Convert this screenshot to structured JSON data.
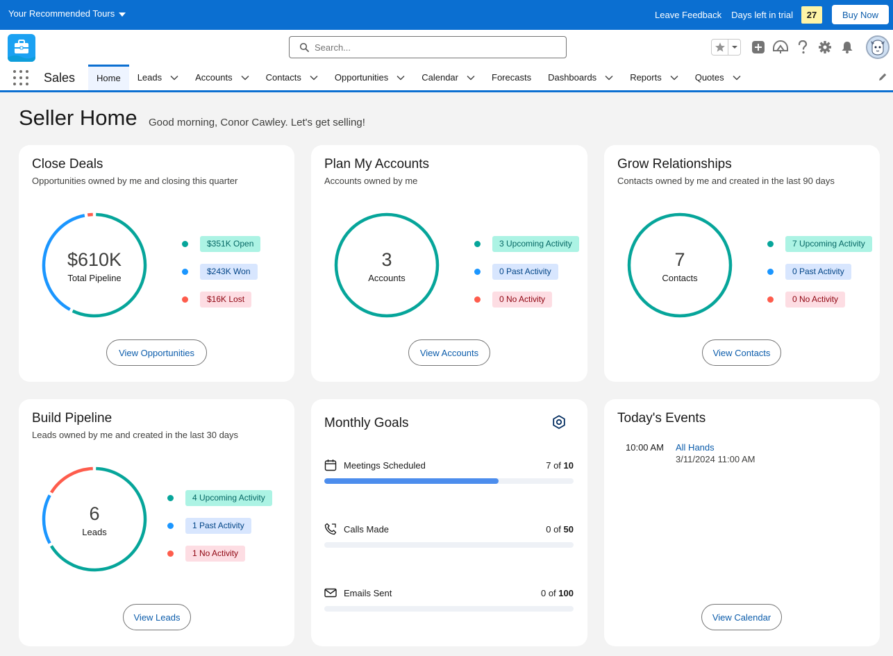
{
  "trial_bar": {
    "tours_label": "Your Recommended Tours",
    "feedback_label": "Leave Feedback",
    "days_left_label": "Days left in trial",
    "days_left_value": "27",
    "buy_now_label": "Buy Now"
  },
  "header": {
    "search_placeholder": "Search...",
    "icons": [
      "star-icon",
      "chevron-down-icon",
      "add-icon",
      "trailhead-icon",
      "help-icon",
      "gear-icon",
      "bell-icon",
      "avatar"
    ]
  },
  "nav": {
    "app_name": "Sales",
    "tabs": [
      {
        "label": "Home",
        "active": true,
        "dropdown": false
      },
      {
        "label": "Leads",
        "dropdown": true
      },
      {
        "label": "Accounts",
        "dropdown": true
      },
      {
        "label": "Contacts",
        "dropdown": true
      },
      {
        "label": "Opportunities",
        "dropdown": true
      },
      {
        "label": "Calendar",
        "dropdown": true
      },
      {
        "label": "Forecasts",
        "dropdown": false
      },
      {
        "label": "Dashboards",
        "dropdown": true
      },
      {
        "label": "Reports",
        "dropdown": true
      },
      {
        "label": "Quotes",
        "dropdown": true
      }
    ]
  },
  "page": {
    "title": "Seller Home",
    "greeting": "Good morning, Conor Cawley. Let's get selling!"
  },
  "colors": {
    "teal": "#06a59a",
    "blue": "#1b96ff",
    "red": "#fe5c4c",
    "teal_bg": "#acf3e4",
    "teal_text": "#056764",
    "blue_bg": "#d8e6fe",
    "blue_text": "#014486",
    "red_bg": "#fddde3",
    "red_text": "#8e030f",
    "brand": "#0b6fd1"
  },
  "cards": {
    "close_deals": {
      "title": "Close Deals",
      "subtitle": "Opportunities owned by me and closing this quarter",
      "center_value": "$610K",
      "center_label": "Total Pipeline",
      "legend": [
        "$351K Open",
        "$243K Won",
        "$16K Lost"
      ],
      "button": "View Opportunities"
    },
    "plan_accounts": {
      "title": "Plan My Accounts",
      "subtitle": "Accounts owned by me",
      "center_value": "3",
      "center_label": "Accounts",
      "legend": [
        "3 Upcoming Activity",
        "0 Past Activity",
        "0 No Activity"
      ],
      "button": "View Accounts"
    },
    "grow_relationships": {
      "title": "Grow Relationships",
      "subtitle": "Contacts owned by me and created in the last 90 days",
      "center_value": "7",
      "center_label": "Contacts",
      "legend": [
        "7 Upcoming Activity",
        "0 Past Activity",
        "0 No Activity"
      ],
      "button": "View Contacts"
    },
    "build_pipeline": {
      "title": "Build Pipeline",
      "subtitle": "Leads owned by me and created in the last 30 days",
      "center_value": "6",
      "center_label": "Leads",
      "legend": [
        "4 Upcoming Activity",
        "1 Past Activity",
        "1 No Activity"
      ],
      "button": "View Leads"
    },
    "monthly_goals": {
      "title": "Monthly Goals",
      "goals": [
        {
          "label": "Meetings Scheduled",
          "current": "7",
          "of": "of",
          "target": "10"
        },
        {
          "label": "Calls Made",
          "current": "0",
          "of": "of",
          "target": "50"
        },
        {
          "label": "Emails Sent",
          "current": "0",
          "of": "of",
          "target": "100"
        }
      ]
    },
    "todays_events": {
      "title": "Today's Events",
      "events": [
        {
          "time": "10:00 AM",
          "name": "All Hands",
          "datetime": "3/11/2024 11:00 AM"
        }
      ],
      "button": "View Calendar"
    }
  },
  "chart_data": [
    {
      "type": "pie",
      "name": "close_deals",
      "categories": [
        "Open",
        "Won",
        "Lost"
      ],
      "values": [
        351,
        243,
        16
      ]
    },
    {
      "type": "pie",
      "name": "plan_accounts",
      "categories": [
        "Upcoming Activity",
        "Past Activity",
        "No Activity"
      ],
      "values": [
        3,
        0,
        0
      ]
    },
    {
      "type": "pie",
      "name": "grow_relationships",
      "categories": [
        "Upcoming Activity",
        "Past Activity",
        "No Activity"
      ],
      "values": [
        7,
        0,
        0
      ]
    },
    {
      "type": "pie",
      "name": "build_pipeline",
      "categories": [
        "Upcoming Activity",
        "Past Activity",
        "No Activity"
      ],
      "values": [
        4,
        1,
        1
      ]
    },
    {
      "type": "bar",
      "name": "monthly_goals",
      "categories": [
        "Meetings Scheduled",
        "Calls Made",
        "Emails Sent"
      ],
      "values": [
        7,
        0,
        0
      ],
      "targets": [
        10,
        50,
        100
      ]
    }
  ]
}
